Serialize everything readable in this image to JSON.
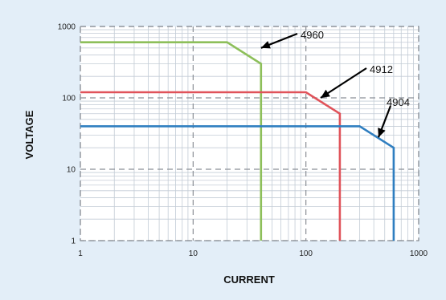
{
  "chart_data": {
    "type": "line",
    "xlabel": "CURRENT",
    "ylabel": "VOLTAGE",
    "xscale": "log",
    "yscale": "log",
    "xlim": [
      1,
      1000
    ],
    "ylim": [
      1,
      1000
    ],
    "xticks": [
      1,
      10,
      100,
      1000
    ],
    "xtick_labels": [
      "1",
      "10",
      "100",
      "1000"
    ],
    "yticks": [
      1,
      10,
      100,
      1000
    ],
    "ytick_labels": [
      "1",
      "10",
      "100",
      "1000"
    ],
    "grid": true,
    "series": [
      {
        "name": "4960",
        "color": "#8dbf5a",
        "x": [
          1,
          20,
          40,
          40
        ],
        "y": [
          600,
          600,
          300,
          1
        ]
      },
      {
        "name": "4912",
        "color": "#e0535a",
        "x": [
          1,
          100,
          200,
          200
        ],
        "y": [
          120,
          120,
          60,
          1
        ]
      },
      {
        "name": "4904",
        "color": "#2f7ec0",
        "x": [
          1,
          300,
          600,
          600
        ],
        "y": [
          40,
          40,
          20,
          1
        ]
      }
    ],
    "annotations": [
      {
        "text": "4960",
        "arrow_to": [
          40,
          500
        ]
      },
      {
        "text": "4912",
        "arrow_to": [
          135,
          100
        ]
      },
      {
        "text": "4904",
        "arrow_to": [
          440,
          28
        ]
      }
    ]
  }
}
